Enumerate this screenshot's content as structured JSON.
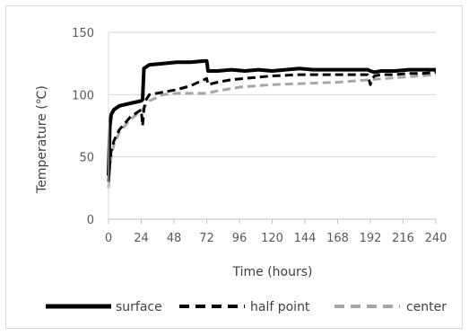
{
  "chart_data": {
    "type": "line",
    "title": "",
    "xlabel": "Time (hours)",
    "ylabel": "Temperature (℃)",
    "xlim": [
      0,
      240
    ],
    "ylim": [
      0,
      150
    ],
    "xticks": [
      0,
      24,
      48,
      72,
      96,
      120,
      144,
      168,
      192,
      216,
      240
    ],
    "yticks": [
      0,
      50,
      100,
      150
    ],
    "grid": "horizontal",
    "legend": "bottom",
    "series": [
      {
        "name": "surface",
        "style": "solid",
        "color": "#000000",
        "x": [
          0,
          1,
          2,
          4,
          8,
          16,
          24,
          25,
          26,
          30,
          40,
          50,
          60,
          70,
          72,
          73,
          80,
          90,
          100,
          110,
          120,
          130,
          140,
          150,
          160,
          170,
          180,
          190,
          192,
          195,
          200,
          210,
          220,
          230,
          240
        ],
        "y": [
          35,
          75,
          84,
          88,
          91,
          93,
          95,
          96,
          121,
          124,
          125,
          126,
          126,
          127,
          127,
          119,
          119,
          120,
          119,
          120,
          119,
          120,
          121,
          120,
          120,
          120,
          120,
          120,
          119,
          118,
          119,
          119,
          120,
          120,
          120
        ]
      },
      {
        "name": "half point",
        "style": "dashed",
        "color": "#000000",
        "x": [
          0,
          1,
          2,
          4,
          8,
          16,
          24,
          25,
          26,
          27,
          30,
          40,
          50,
          60,
          70,
          72,
          73,
          80,
          90,
          100,
          110,
          120,
          140,
          160,
          180,
          190,
          192,
          193,
          195,
          200,
          210,
          220,
          230,
          240
        ],
        "y": [
          30,
          45,
          55,
          63,
          72,
          82,
          88,
          75,
          88,
          95,
          100,
          102,
          104,
          107,
          112,
          113,
          108,
          110,
          112,
          113,
          114,
          115,
          116,
          116,
          116,
          116,
          108,
          112,
          115,
          116,
          116,
          117,
          117,
          118
        ]
      },
      {
        "name": "center",
        "style": "dashed",
        "color": "#a6a6a6",
        "x": [
          0,
          1,
          2,
          4,
          8,
          16,
          24,
          30,
          40,
          50,
          60,
          72,
          80,
          96,
          120,
          144,
          168,
          192,
          216,
          240
        ],
        "y": [
          25,
          40,
          50,
          60,
          70,
          80,
          87,
          95,
          100,
          101,
          101,
          101,
          103,
          106,
          108,
          109,
          110,
          112,
          114,
          116
        ]
      }
    ]
  }
}
